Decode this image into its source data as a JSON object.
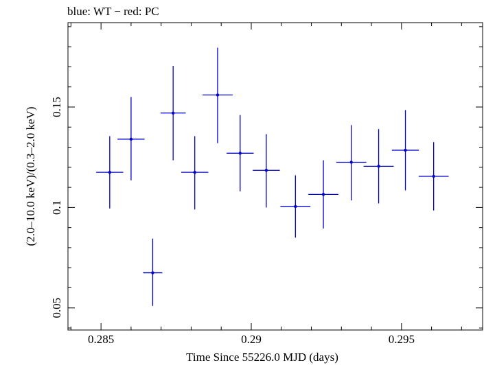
{
  "title": "blue: WT − red: PC",
  "chart_data": {
    "type": "scatter",
    "title": "blue: WT − red: PC",
    "xlabel": "Time Since 55226.0 MJD (days)",
    "ylabel": "(2.0–10.0 keV)/(0.3–2.0 keV)",
    "xlim": [
      0.2839,
      0.2977
    ],
    "ylim": [
      0.039,
      0.192
    ],
    "xticks": [
      {
        "value": 0.285,
        "label": "0.285"
      },
      {
        "value": 0.29,
        "label": "0.29"
      },
      {
        "value": 0.295,
        "label": "0.295"
      }
    ],
    "yticks": [
      {
        "value": 0.05,
        "label": "0.05"
      },
      {
        "value": 0.1,
        "label": "0.1"
      },
      {
        "value": 0.15,
        "label": "0.15"
      }
    ],
    "grid": false,
    "series": [
      {
        "name": "WT",
        "color": "#0000cc",
        "points": [
          {
            "x": 0.28529,
            "xerr": 0.00045,
            "y": 0.1175,
            "ylo": 0.0995,
            "yhi": 0.1355
          },
          {
            "x": 0.286,
            "xerr": 0.00045,
            "y": 0.134,
            "ylo": 0.1135,
            "yhi": 0.155
          },
          {
            "x": 0.28672,
            "xerr": 0.00032,
            "y": 0.0675,
            "ylo": 0.051,
            "yhi": 0.0845
          },
          {
            "x": 0.2874,
            "xerr": 0.00042,
            "y": 0.147,
            "ylo": 0.1235,
            "yhi": 0.1705
          },
          {
            "x": 0.28812,
            "xerr": 0.00045,
            "y": 0.1175,
            "ylo": 0.099,
            "yhi": 0.1355
          },
          {
            "x": 0.28888,
            "xerr": 0.0005,
            "y": 0.156,
            "ylo": 0.132,
            "yhi": 0.1795
          },
          {
            "x": 0.28963,
            "xerr": 0.00045,
            "y": 0.127,
            "ylo": 0.108,
            "yhi": 0.146
          },
          {
            "x": 0.2905,
            "xerr": 0.00045,
            "y": 0.1185,
            "ylo": 0.1,
            "yhi": 0.1365
          },
          {
            "x": 0.29147,
            "xerr": 0.0005,
            "y": 0.1005,
            "ylo": 0.085,
            "yhi": 0.116
          },
          {
            "x": 0.2924,
            "xerr": 0.0005,
            "y": 0.1065,
            "ylo": 0.0895,
            "yhi": 0.1235
          },
          {
            "x": 0.29333,
            "xerr": 0.0005,
            "y": 0.1225,
            "ylo": 0.1035,
            "yhi": 0.141
          },
          {
            "x": 0.29424,
            "xerr": 0.0005,
            "y": 0.1205,
            "ylo": 0.102,
            "yhi": 0.139
          },
          {
            "x": 0.29513,
            "xerr": 0.00045,
            "y": 0.1285,
            "ylo": 0.1085,
            "yhi": 0.1485
          },
          {
            "x": 0.29607,
            "xerr": 0.0005,
            "y": 0.1155,
            "ylo": 0.0985,
            "yhi": 0.1325
          }
        ]
      }
    ]
  }
}
